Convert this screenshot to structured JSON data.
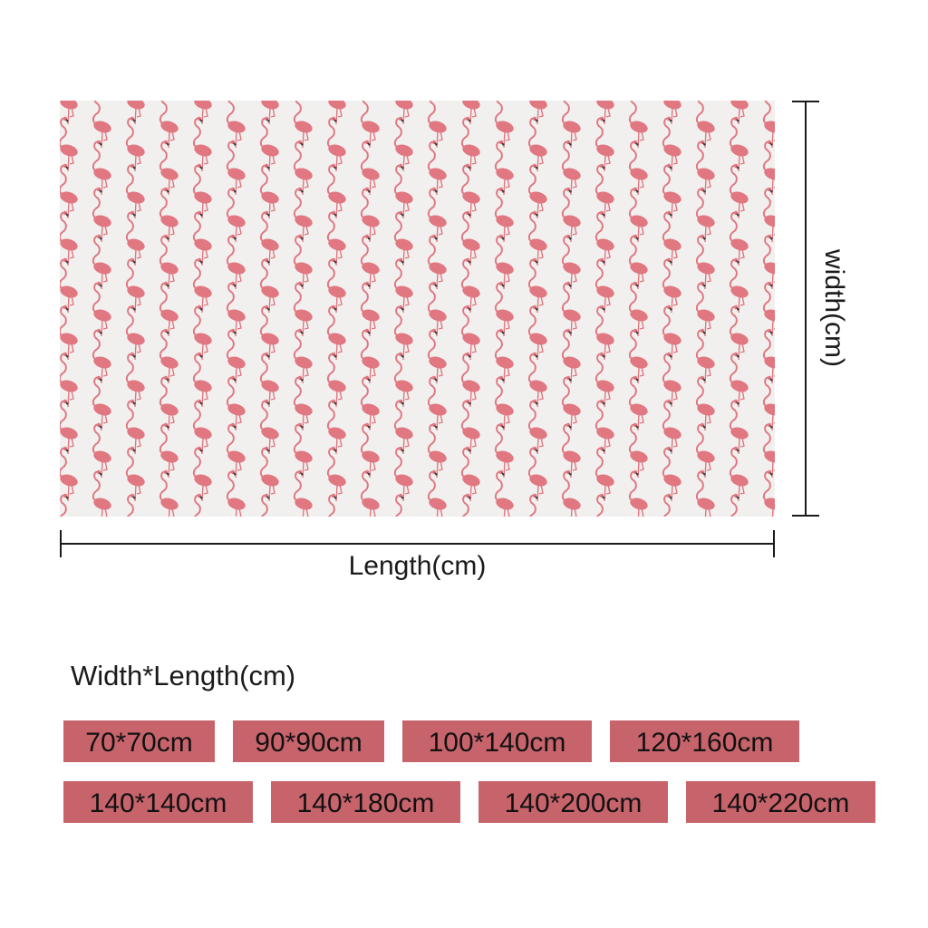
{
  "dimensions": {
    "length_label": "Length(cm)",
    "width_label": "width(cm)"
  },
  "sizes": {
    "heading": "Width*Length(cm)",
    "options": [
      "70*70cm",
      "90*90cm",
      "100*140cm",
      "120*160cm",
      "140*140cm",
      "140*180cm",
      "140*200cm",
      "140*220cm"
    ]
  },
  "colors": {
    "chip_background": "#c7646b",
    "pattern_background": "#f1f0ef",
    "flamingo": "#e07781"
  },
  "pattern": {
    "motif": "flamingo"
  }
}
